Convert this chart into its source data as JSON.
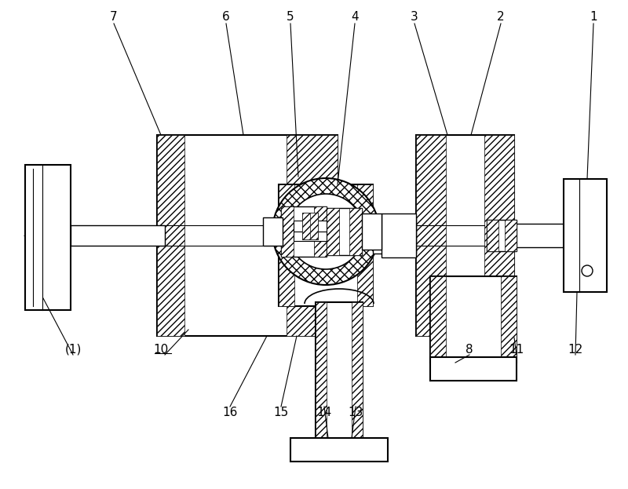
{
  "bg_color": "#ffffff",
  "line_color": "#000000",
  "figsize": [
    8.0,
    6.23
  ],
  "dpi": 100
}
